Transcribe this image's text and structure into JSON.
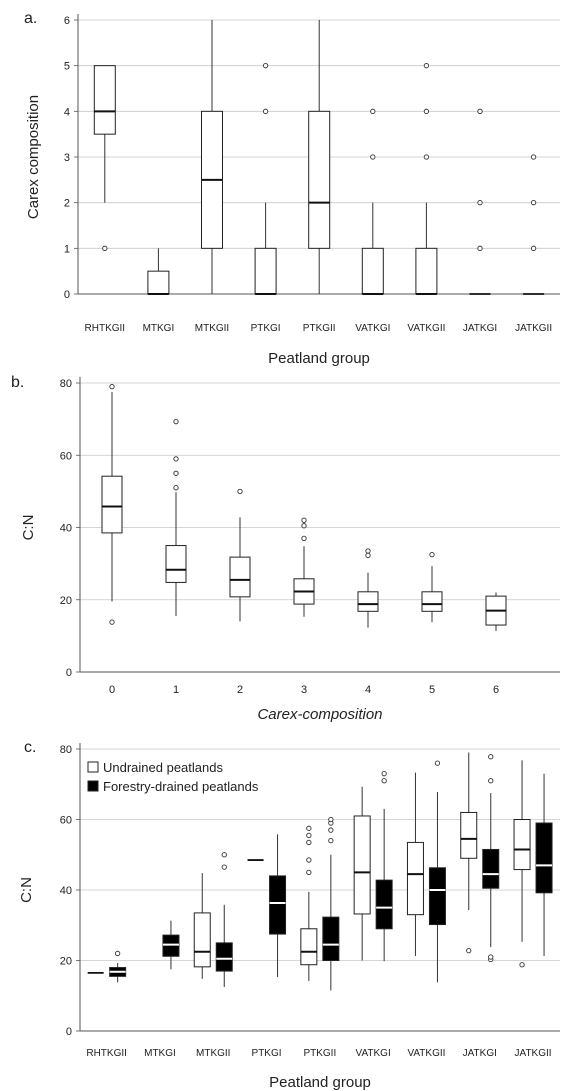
{
  "chart_data": [
    {
      "type": "boxplot",
      "panel_label": "a.",
      "xlabel": "Peatland group",
      "ylabel": "Carex composition",
      "ylim": [
        0,
        6
      ],
      "yticks": [
        0,
        1,
        2,
        3,
        4,
        5,
        6
      ],
      "grid": "horizontal",
      "categories": [
        "RHTKGII",
        "MTKGI",
        "MTKGII",
        "PTKGI",
        "PTKGII",
        "VATKGI",
        "VATKGII",
        "JATKGI",
        "JATKGII"
      ],
      "series": [
        {
          "fill": "#ffffff",
          "boxes": [
            {
              "q1": 3.5,
              "median": 4,
              "q3": 5,
              "whisker_low": 2,
              "whisker_high": 5,
              "outliers": [
                1
              ]
            },
            {
              "q1": 0,
              "median": 0,
              "q3": 0.5,
              "whisker_low": 0,
              "whisker_high": 1,
              "outliers": []
            },
            {
              "q1": 1,
              "median": 2.5,
              "q3": 4,
              "whisker_low": 0,
              "whisker_high": 6,
              "outliers": []
            },
            {
              "q1": 0,
              "median": 0,
              "q3": 1,
              "whisker_low": 0,
              "whisker_high": 2,
              "outliers": [
                4,
                5
              ]
            },
            {
              "q1": 1,
              "median": 2,
              "q3": 4,
              "whisker_low": 0,
              "whisker_high": 6,
              "outliers": []
            },
            {
              "q1": 0,
              "median": 0,
              "q3": 1,
              "whisker_low": 0,
              "whisker_high": 2,
              "outliers": [
                3,
                4
              ]
            },
            {
              "q1": 0,
              "median": 0,
              "q3": 1,
              "whisker_low": 0,
              "whisker_high": 2,
              "outliers": [
                3,
                4,
                5
              ]
            },
            {
              "q1": 0,
              "median": 0,
              "q3": 0,
              "whisker_low": 0,
              "whisker_high": 0,
              "outliers": [
                1,
                2,
                4
              ]
            },
            {
              "q1": 0,
              "median": 0,
              "q3": 0,
              "whisker_low": 0,
              "whisker_high": 0,
              "outliers": [
                1,
                2,
                3
              ]
            }
          ]
        }
      ]
    },
    {
      "type": "boxplot",
      "panel_label": "b.",
      "xlabel": "Carex-composition",
      "ylabel": "C:N",
      "ylim": [
        0,
        80
      ],
      "yticks": [
        0,
        20,
        40,
        60,
        80
      ],
      "grid": "horizontal",
      "categories": [
        "0",
        "1",
        "2",
        "3",
        "4",
        "5",
        "6"
      ],
      "series": [
        {
          "fill": "#ffffff",
          "boxes": [
            {
              "q1": 38.5,
              "median": 45.8,
              "q3": 54.2,
              "whisker_low": 19.5,
              "whisker_high": 77.5,
              "outliers": [
                13.8,
                79
              ]
            },
            {
              "q1": 24.8,
              "median": 28.3,
              "q3": 35,
              "whisker_low": 15.5,
              "whisker_high": 49.8,
              "outliers": [
                51,
                55,
                59,
                69.3
              ]
            },
            {
              "q1": 20.8,
              "median": 25.5,
              "q3": 31.8,
              "whisker_low": 14,
              "whisker_high": 42.8,
              "outliers": [
                50
              ]
            },
            {
              "q1": 18.8,
              "median": 22.3,
              "q3": 25.8,
              "whisker_low": 15.3,
              "whisker_high": 34.8,
              "outliers": [
                37,
                40.5,
                42
              ]
            },
            {
              "q1": 16.8,
              "median": 18.8,
              "q3": 22.2,
              "whisker_low": 12.3,
              "whisker_high": 27.5,
              "outliers": [
                32.3,
                33.5
              ]
            },
            {
              "q1": 16.8,
              "median": 18.8,
              "q3": 22.2,
              "whisker_low": 13.8,
              "whisker_high": 29.3,
              "outliers": [
                32.5
              ]
            },
            {
              "q1": 13,
              "median": 17,
              "q3": 21,
              "whisker_low": 11.3,
              "whisker_high": 22,
              "outliers": []
            }
          ]
        }
      ]
    },
    {
      "type": "boxplot",
      "panel_label": "c.",
      "xlabel": "Peatland group",
      "ylabel": "C:N",
      "ylim": [
        0,
        80
      ],
      "yticks": [
        0,
        20,
        40,
        60,
        80
      ],
      "grid": "horizontal",
      "legend_position": "top-left",
      "categories": [
        "RHTKGII",
        "MTKGI",
        "MTKGII",
        "PTKGI",
        "PTKGII",
        "VATKGI",
        "VATKGII",
        "JATKGI",
        "JATKGII"
      ],
      "series": [
        {
          "name": "Undrained peatlands",
          "fill": "#ffffff",
          "boxes": [
            {
              "q1": 16.5,
              "median": 16.5,
              "q3": 16.5,
              "whisker_low": 16.5,
              "whisker_high": 16.5,
              "outliers": []
            },
            null,
            {
              "q1": 18.2,
              "median": 22.5,
              "q3": 33.5,
              "whisker_low": 14.8,
              "whisker_high": 44.8,
              "outliers": []
            },
            {
              "q1": 48.5,
              "median": 48.5,
              "q3": 48.5,
              "whisker_low": 48.5,
              "whisker_high": 48.5,
              "outliers": []
            },
            {
              "q1": 18.8,
              "median": 22.5,
              "q3": 29,
              "whisker_low": 14.2,
              "whisker_high": 39.5,
              "outliers": [
                45,
                48.5,
                53.5,
                55.5,
                57.5
              ]
            },
            {
              "q1": 33.2,
              "median": 45,
              "q3": 61,
              "whisker_low": 20,
              "whisker_high": 69.3,
              "outliers": []
            },
            {
              "q1": 33,
              "median": 44.5,
              "q3": 53.5,
              "whisker_low": 21.3,
              "whisker_high": 73.3,
              "outliers": []
            },
            {
              "q1": 49,
              "median": 54.5,
              "q3": 62,
              "whisker_low": 34.3,
              "whisker_high": 79,
              "outliers": [
                22.8
              ]
            },
            {
              "q1": 45.8,
              "median": 51.5,
              "q3": 60,
              "whisker_low": 25.3,
              "whisker_high": 76.8,
              "outliers": [
                18.8
              ]
            }
          ]
        },
        {
          "name": "Forestry-drained peatlands",
          "fill": "#000000",
          "boxes": [
            {
              "q1": 15.5,
              "median": 16.8,
              "q3": 18,
              "whisker_low": 13.8,
              "whisker_high": 19.3,
              "outliers": [
                22
              ]
            },
            {
              "q1": 21.2,
              "median": 24.5,
              "q3": 27.2,
              "whisker_low": 17.5,
              "whisker_high": 31.3,
              "outliers": []
            },
            {
              "q1": 17,
              "median": 20.5,
              "q3": 25,
              "whisker_low": 12.5,
              "whisker_high": 35.8,
              "outliers": [
                46.5,
                50
              ]
            },
            {
              "q1": 27.5,
              "median": 36.3,
              "q3": 44,
              "whisker_low": 15.3,
              "whisker_high": 55.8,
              "outliers": []
            },
            {
              "q1": 20,
              "median": 24.5,
              "q3": 32.3,
              "whisker_low": 11.5,
              "whisker_high": 50,
              "outliers": [
                54,
                57,
                59,
                60
              ]
            },
            {
              "q1": 29,
              "median": 35,
              "q3": 42.8,
              "whisker_low": 19.8,
              "whisker_high": 63,
              "outliers": [
                71,
                73
              ]
            },
            {
              "q1": 30.2,
              "median": 40,
              "q3": 46.3,
              "whisker_low": 13.8,
              "whisker_high": 67.8,
              "outliers": [
                76
              ]
            },
            {
              "q1": 40.5,
              "median": 44.5,
              "q3": 51.5,
              "whisker_low": 23.8,
              "whisker_high": 67.5,
              "outliers": [
                20.3,
                21,
                71,
                77.8
              ]
            },
            {
              "q1": 39.2,
              "median": 47,
              "q3": 59,
              "whisker_low": 21.3,
              "whisker_high": 73,
              "outliers": []
            }
          ]
        }
      ]
    }
  ]
}
